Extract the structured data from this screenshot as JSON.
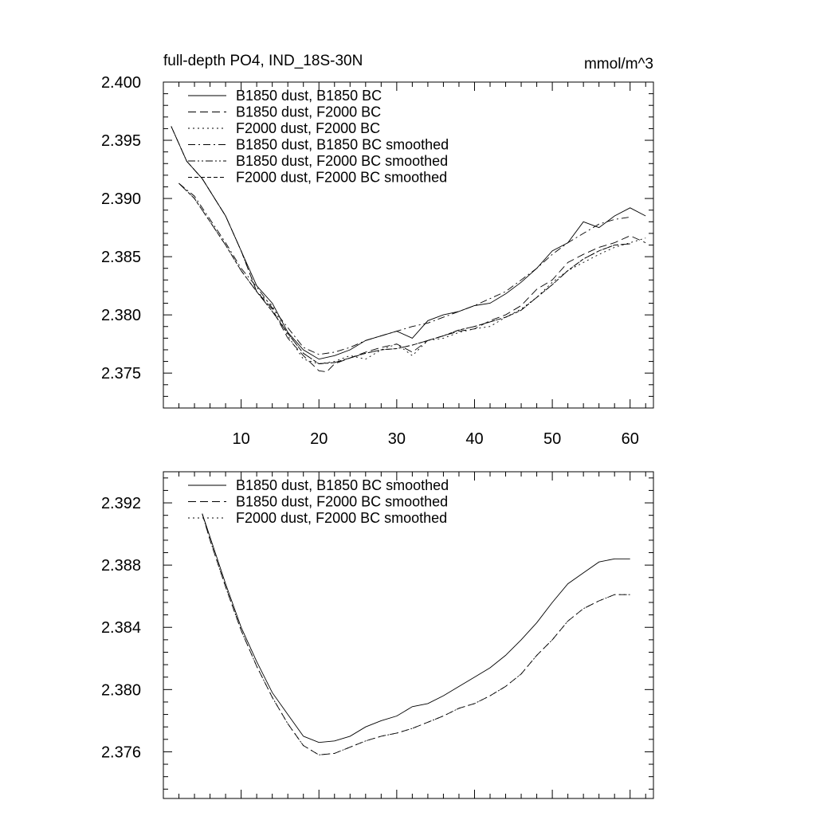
{
  "chart_data": [
    {
      "type": "line",
      "title": "full-depth PO4, IND_18S-30N",
      "units": "mmol/m^3",
      "xlim": [
        0,
        63
      ],
      "ylim": [
        2.372,
        2.4
      ],
      "x_ticks": [
        10,
        20,
        30,
        40,
        50,
        60
      ],
      "y_ticks": [
        2.375,
        2.38,
        2.385,
        2.39,
        2.395,
        2.4
      ],
      "y_tick_labels": [
        "2.375",
        "2.380",
        "2.385",
        "2.390",
        "2.395",
        "2.400"
      ],
      "legend_position": "top-left",
      "series": [
        {
          "name": "B1850 dust, B1850 BC",
          "dash": "solid",
          "x": [
            1,
            3,
            5,
            8,
            10,
            12,
            14,
            16,
            18,
            20,
            22,
            24,
            26,
            28,
            30,
            32,
            34,
            36,
            38,
            40,
            42,
            44,
            46,
            48,
            50,
            52,
            54,
            56,
            58,
            60,
            62
          ],
          "y": [
            2.3962,
            2.3932,
            2.3917,
            2.3885,
            2.3855,
            2.3825,
            2.381,
            2.3785,
            2.377,
            2.3762,
            2.3765,
            2.377,
            2.3778,
            2.3782,
            2.3786,
            2.378,
            2.3795,
            2.38,
            2.3803,
            2.3808,
            2.381,
            2.3818,
            2.3828,
            2.384,
            2.3855,
            2.3862,
            2.388,
            2.3875,
            2.3885,
            2.3892,
            2.3885
          ]
        },
        {
          "name": "B1850 dust, F2000 BC",
          "dash": "long-dash",
          "x": [
            1,
            3,
            5,
            8,
            10,
            12,
            14,
            16,
            18,
            20,
            21,
            22,
            24,
            26,
            28,
            30,
            32,
            34,
            36,
            38,
            40,
            42,
            44,
            46,
            48,
            50,
            52,
            54,
            56,
            58,
            60,
            62
          ],
          "y": [
            2.3962,
            2.3932,
            2.3917,
            2.3885,
            2.3855,
            2.382,
            2.3805,
            2.378,
            2.3765,
            2.3752,
            2.3751,
            2.3758,
            2.3763,
            2.3768,
            2.3772,
            2.3775,
            2.3768,
            2.3778,
            2.3782,
            2.3786,
            2.3788,
            2.3795,
            2.38,
            2.3808,
            2.3822,
            2.383,
            2.3845,
            2.3852,
            2.3858,
            2.3862,
            2.3868,
            2.3862
          ]
        },
        {
          "name": "F2000 dust, F2000 BC",
          "dash": "dotted",
          "x": [
            1,
            3,
            5,
            8,
            10,
            12,
            14,
            16,
            18,
            20,
            22,
            24,
            26,
            28,
            30,
            32,
            34,
            36,
            38,
            40,
            42,
            44,
            46,
            48,
            50,
            52,
            54,
            56,
            58,
            60,
            62
          ],
          "y": [
            2.3962,
            2.3932,
            2.3917,
            2.3885,
            2.3855,
            2.382,
            2.3808,
            2.3782,
            2.3762,
            2.3758,
            2.376,
            2.3765,
            2.3762,
            2.377,
            2.3775,
            2.3765,
            2.3778,
            2.378,
            2.3785,
            2.3788,
            2.379,
            2.3798,
            2.3805,
            2.3815,
            2.3828,
            2.3838,
            2.3845,
            2.3852,
            2.3858,
            2.3862,
            2.3866
          ]
        },
        {
          "name": "B1850 dust, B1850 BC smoothed",
          "dash": "dash-dot",
          "x": [
            2,
            4,
            6,
            8,
            10,
            12,
            14,
            16,
            18,
            20,
            22,
            24,
            26,
            28,
            30,
            32,
            34,
            36,
            38,
            40,
            42,
            44,
            46,
            48,
            50,
            52,
            54,
            56,
            58,
            60
          ],
          "y": [
            2.3913,
            2.3902,
            2.3882,
            2.3862,
            2.384,
            2.3824,
            2.3806,
            2.3789,
            2.3772,
            2.3766,
            2.3768,
            2.3772,
            2.3778,
            2.3782,
            2.3786,
            2.379,
            2.3793,
            2.3798,
            2.3803,
            2.3808,
            2.3814,
            2.382,
            2.383,
            2.384,
            2.3852,
            2.3862,
            2.387,
            2.3878,
            2.3882,
            2.3884
          ]
        },
        {
          "name": "B1850 dust, F2000 BC smoothed",
          "dash": "dash-dot-dot",
          "x": [
            2,
            4,
            6,
            8,
            10,
            12,
            14,
            16,
            18,
            20,
            22,
            24,
            26,
            28,
            30,
            32,
            34,
            36,
            38,
            40,
            42,
            44,
            46,
            48,
            50,
            52,
            54,
            56,
            58,
            60
          ],
          "y": [
            2.3913,
            2.39,
            2.388,
            2.386,
            2.3838,
            2.382,
            2.3803,
            2.3784,
            2.3767,
            2.3758,
            2.3759,
            2.3763,
            2.3767,
            2.377,
            2.3771,
            2.3774,
            2.3778,
            2.3782,
            2.3787,
            2.379,
            2.3794,
            2.3798,
            2.3804,
            2.3815,
            2.3826,
            2.3838,
            2.3848,
            2.3855,
            2.386,
            2.3861
          ]
        },
        {
          "name": "F2000 dust, F2000 BC smoothed",
          "dash": "short-dash",
          "x": [
            2,
            4,
            6,
            8,
            10,
            12,
            14,
            16,
            18,
            20,
            22,
            24,
            26,
            28,
            30,
            32,
            34,
            36,
            38,
            40,
            42,
            44,
            46,
            48,
            50,
            52,
            54,
            56,
            58,
            60
          ],
          "y": [
            2.3913,
            2.39,
            2.388,
            2.386,
            2.3838,
            2.382,
            2.3803,
            2.3784,
            2.3767,
            2.3758,
            2.3759,
            2.3763,
            2.3767,
            2.377,
            2.3771,
            2.3774,
            2.3778,
            2.3782,
            2.3787,
            2.379,
            2.3794,
            2.3798,
            2.3804,
            2.3815,
            2.3826,
            2.3838,
            2.3848,
            2.3855,
            2.386,
            2.3861
          ]
        }
      ]
    },
    {
      "type": "line",
      "xlim": [
        0,
        63
      ],
      "ylim": [
        2.373,
        2.394
      ],
      "x_ticks": [
        10,
        20,
        30,
        40,
        50,
        60
      ],
      "y_ticks": [
        2.376,
        2.38,
        2.384,
        2.388,
        2.392
      ],
      "y_tick_labels": [
        "2.376",
        "2.380",
        "2.384",
        "2.388",
        "2.392"
      ],
      "legend_position": "top-left",
      "series": [
        {
          "name": "B1850 dust, B1850 BC smoothed",
          "dash": "solid",
          "x": [
            5,
            6,
            8,
            10,
            12,
            14,
            16,
            18,
            20,
            22,
            24,
            26,
            28,
            30,
            32,
            34,
            36,
            38,
            40,
            42,
            44,
            46,
            48,
            50,
            52,
            54,
            56,
            58,
            60
          ],
          "y": [
            2.3913,
            2.3898,
            2.3868,
            2.384,
            2.3818,
            2.3798,
            2.3784,
            2.377,
            2.3766,
            2.3767,
            2.377,
            2.3776,
            2.378,
            2.3783,
            2.3789,
            2.3791,
            2.3796,
            2.3802,
            2.3808,
            2.3814,
            2.3822,
            2.3832,
            2.3843,
            2.3856,
            2.3868,
            2.3875,
            2.3882,
            2.3884,
            2.3884
          ]
        },
        {
          "name": "B1850 dust, F2000 BC smoothed",
          "dash": "long-dash",
          "x": [
            5,
            6,
            8,
            10,
            12,
            14,
            16,
            18,
            20,
            22,
            24,
            26,
            28,
            30,
            32,
            34,
            36,
            38,
            40,
            42,
            44,
            46,
            48,
            50,
            52,
            54,
            56,
            58,
            60
          ],
          "y": [
            2.3913,
            2.3896,
            2.3866,
            2.3838,
            2.3815,
            2.3795,
            2.3778,
            2.3764,
            2.3758,
            2.3759,
            2.3763,
            2.3767,
            2.377,
            2.3772,
            2.3775,
            2.3779,
            2.3783,
            2.3788,
            2.3791,
            2.3796,
            2.3802,
            2.381,
            2.3822,
            2.3832,
            2.3844,
            2.3852,
            2.3857,
            2.3861,
            2.3861
          ]
        },
        {
          "name": "F2000 dust, F2000 BC smoothed",
          "dash": "dotted",
          "x": [
            5,
            6,
            8,
            10,
            12,
            14,
            16,
            18,
            20,
            22,
            24,
            26,
            28,
            30,
            32,
            34,
            36,
            38,
            40,
            42,
            44,
            46,
            48,
            50,
            52,
            54,
            56,
            58,
            60
          ],
          "y": [
            2.3913,
            2.3896,
            2.3866,
            2.3838,
            2.3815,
            2.3795,
            2.3778,
            2.3764,
            2.3758,
            2.3759,
            2.3763,
            2.3767,
            2.377,
            2.3772,
            2.3775,
            2.3779,
            2.3783,
            2.3788,
            2.3791,
            2.3796,
            2.3802,
            2.381,
            2.3822,
            2.3832,
            2.3844,
            2.3852,
            2.3857,
            2.3861,
            2.3861
          ]
        }
      ]
    }
  ]
}
